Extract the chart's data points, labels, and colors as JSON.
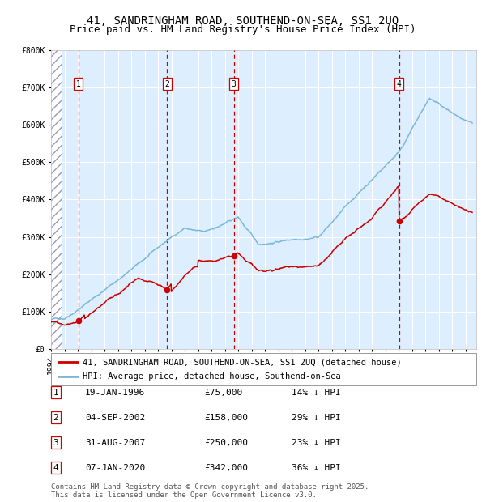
{
  "title": "41, SANDRINGHAM ROAD, SOUTHEND-ON-SEA, SS1 2UQ",
  "subtitle": "Price paid vs. HM Land Registry's House Price Index (HPI)",
  "legend_line1": "41, SANDRINGHAM ROAD, SOUTHEND-ON-SEA, SS1 2UQ (detached house)",
  "legend_line2": "HPI: Average price, detached house, Southend-on-Sea",
  "footer1": "Contains HM Land Registry data © Crown copyright and database right 2025.",
  "footer2": "This data is licensed under the Open Government Licence v3.0.",
  "transactions": [
    {
      "num": 1,
      "date": "19-JAN-1996",
      "price": 75000,
      "pct": "14% ↓ HPI",
      "date_x": 1996.05
    },
    {
      "num": 2,
      "date": "04-SEP-2002",
      "price": 158000,
      "pct": "29% ↓ HPI",
      "date_x": 2002.67
    },
    {
      "num": 3,
      "date": "31-AUG-2007",
      "price": 250000,
      "pct": "23% ↓ HPI",
      "date_x": 2007.66
    },
    {
      "num": 4,
      "date": "07-JAN-2020",
      "price": 342000,
      "pct": "36% ↓ HPI",
      "date_x": 2020.02
    }
  ],
  "hpi_color": "#7ab8d9",
  "price_color": "#cc0000",
  "vline_color": "#cc0000",
  "bg_color": "#ddeeff",
  "hatch_color": "#aabbcc",
  "ylim": [
    0,
    800000
  ],
  "ytick_vals": [
    0,
    100000,
    200000,
    300000,
    400000,
    500000,
    600000,
    700000,
    800000
  ],
  "ytick_labels": [
    "£0",
    "£100K",
    "£200K",
    "£300K",
    "£400K",
    "£500K",
    "£600K",
    "£700K",
    "£800K"
  ],
  "xlim_start": 1994.0,
  "xlim_end": 2025.8,
  "grid_color": "#ffffff",
  "title_fontsize": 10,
  "subtitle_fontsize": 9,
  "tick_fontsize": 7,
  "legend_fontsize": 7.5,
  "table_fontsize": 8,
  "footer_fontsize": 6.5
}
